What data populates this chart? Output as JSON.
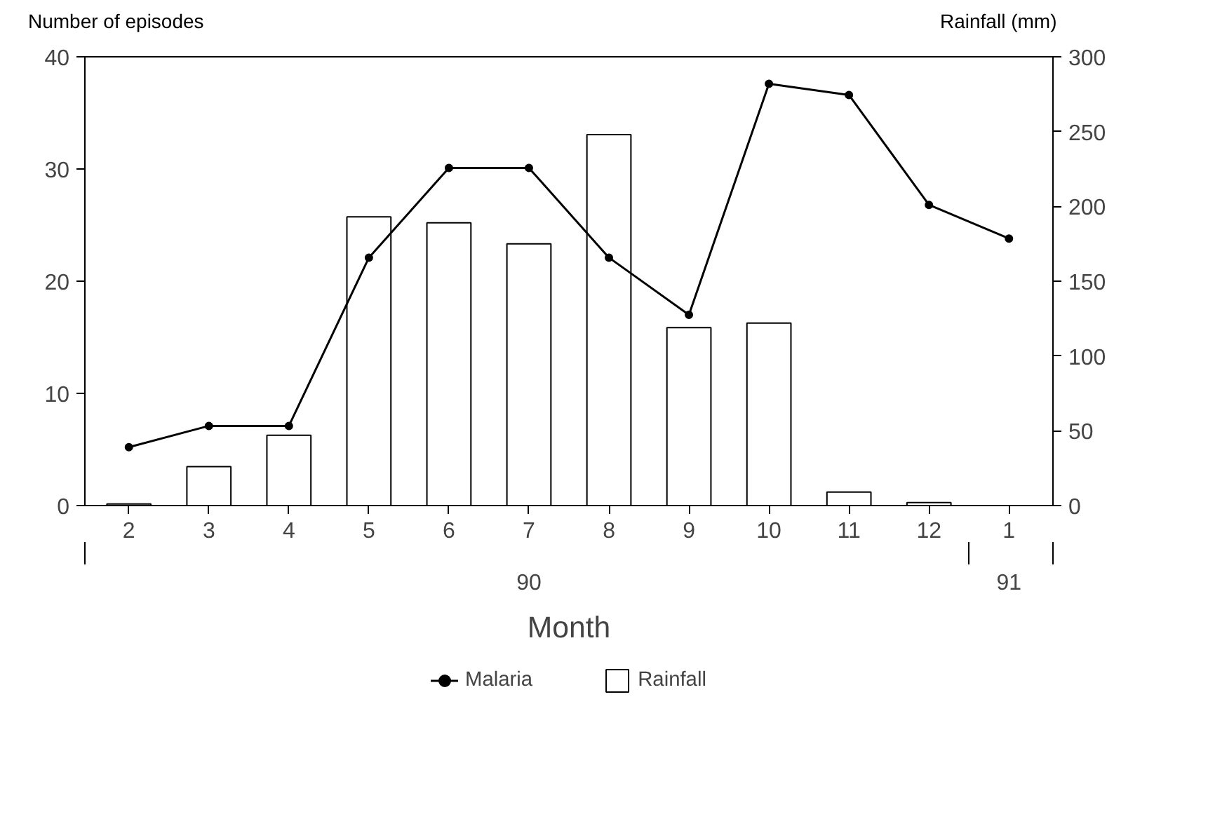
{
  "chart_data": {
    "type": "bar",
    "xlabel": "Month",
    "ylabel": "Number of episodes",
    "y2label": "Rainfall (mm)",
    "categories": [
      "2",
      "3",
      "4",
      "5",
      "6",
      "7",
      "8",
      "9",
      "10",
      "11",
      "12",
      "1"
    ],
    "series": [
      {
        "name": "Malaria",
        "type": "line",
        "color": "#000000",
        "marker": "circle",
        "values": [
          5.2,
          7.1,
          7.1,
          22.1,
          30.1,
          30.1,
          22.1,
          17.0,
          37.6,
          36.6,
          26.8,
          23.8
        ]
      },
      {
        "name": "Rainfall",
        "axis": "y2",
        "color": "#ffffff",
        "values": [
          1,
          26,
          47,
          193,
          189,
          175,
          248,
          119,
          122,
          9,
          2,
          null
        ]
      }
    ],
    "ylim": [
      0,
      40
    ],
    "yticks": [
      0,
      10,
      20,
      30,
      40
    ],
    "y2lim": [
      0,
      300
    ],
    "y2ticks": [
      0,
      50,
      100,
      150,
      200,
      250,
      300
    ],
    "annotations": [
      "90",
      "91"
    ],
    "grid": false,
    "legend": "bottom"
  }
}
